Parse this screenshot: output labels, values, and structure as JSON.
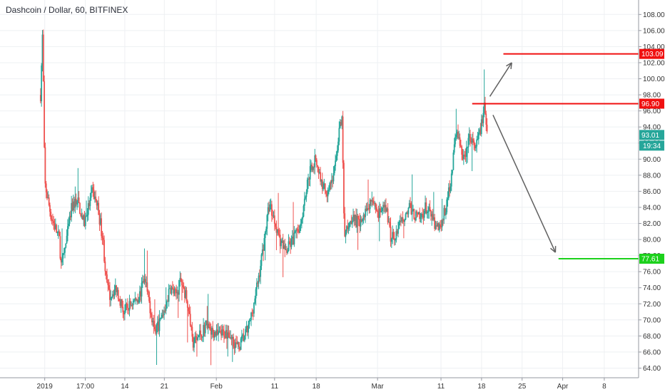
{
  "chart_data": {
    "type": "candlestick",
    "title": "Dashcoin / Dollar, 60, BITFINEX",
    "colors": {
      "up": "#26a69a",
      "down": "#ef5350",
      "resistance": "#f01010",
      "target_up": "#f01010",
      "target_down": "#1cd11c",
      "arrow": "#606060",
      "last_price": "#26a69a",
      "grid": "#eef0f3",
      "axis_text": "#333333"
    },
    "ylim": [
      62.8,
      109.8
    ],
    "y_ticks": [
      "64.00",
      "66.00",
      "68.00",
      "70.00",
      "72.00",
      "74.00",
      "76.00",
      "78.00",
      "80.00",
      "82.00",
      "84.00",
      "86.00",
      "88.00",
      "90.00",
      "92.00",
      "94.00",
      "96.00",
      "98.00",
      "100.00",
      "102.00",
      "104.00",
      "106.00",
      "108.00"
    ],
    "x_ticks": [
      "2019",
      "17:00",
      "14",
      "21",
      "Feb",
      "11",
      "18",
      "Mar",
      "11",
      "18",
      "25",
      "Apr",
      "8"
    ],
    "x_tick_positions": [
      0.4,
      4.3,
      8.1,
      11.9,
      16.9,
      22.5,
      26.5,
      32.4,
      38.5,
      42.4,
      46.3,
      50.2,
      54.2
    ],
    "x_range": [
      -3.9,
      57.5
    ],
    "price_path": [
      [
        0,
        98
      ],
      [
        0.2,
        106
      ],
      [
        0.4,
        87
      ],
      [
        1,
        83
      ],
      [
        1.8,
        80
      ],
      [
        2,
        76.5
      ],
      [
        2.5,
        80
      ],
      [
        3,
        84
      ],
      [
        3.5,
        85
      ],
      [
        4.2,
        82
      ],
      [
        5,
        86
      ],
      [
        5.5,
        84
      ],
      [
        6,
        80
      ],
      [
        6.3,
        75
      ],
      [
        6.6,
        73
      ],
      [
        7.3,
        74
      ],
      [
        8,
        71
      ],
      [
        8.7,
        72
      ],
      [
        9.5,
        73
      ],
      [
        10,
        75
      ],
      [
        11,
        68.5
      ],
      [
        11.6,
        70
      ],
      [
        12.5,
        74
      ],
      [
        13,
        73
      ],
      [
        13.5,
        75
      ],
      [
        14.2,
        72
      ],
      [
        14.6,
        67
      ],
      [
        15.2,
        68
      ],
      [
        16,
        69.5
      ],
      [
        17,
        68
      ],
      [
        18,
        68.5
      ],
      [
        19,
        66.5
      ],
      [
        20,
        69
      ],
      [
        20.5,
        72
      ],
      [
        21,
        75.5
      ],
      [
        21.5,
        80
      ],
      [
        22,
        84.5
      ],
      [
        22.6,
        82
      ],
      [
        23,
        80
      ],
      [
        23.6,
        78.5
      ],
      [
        24.3,
        80
      ],
      [
        25,
        82
      ],
      [
        25.5,
        86
      ],
      [
        26,
        89
      ],
      [
        26.5,
        90
      ],
      [
        27,
        87
      ],
      [
        27.5,
        86
      ],
      [
        28.2,
        88
      ],
      [
        28.7,
        93.5
      ],
      [
        29,
        94.8
      ],
      [
        29.2,
        80
      ],
      [
        29.5,
        81.5
      ],
      [
        30,
        83
      ],
      [
        30.5,
        82
      ],
      [
        31,
        82.5
      ],
      [
        31.5,
        84.5
      ],
      [
        32,
        85
      ],
      [
        32.5,
        83
      ],
      [
        33.2,
        84
      ],
      [
        33.7,
        80
      ],
      [
        34.3,
        81
      ],
      [
        35,
        83
      ],
      [
        35.5,
        84
      ],
      [
        36,
        83
      ],
      [
        36.5,
        82.5
      ],
      [
        37,
        84
      ],
      [
        37.5,
        83
      ],
      [
        38,
        81.5
      ],
      [
        38.5,
        82
      ],
      [
        39,
        84
      ],
      [
        39.5,
        88
      ],
      [
        40,
        94
      ],
      [
        40.4,
        91
      ],
      [
        40.8,
        90
      ],
      [
        41.3,
        93
      ],
      [
        41.8,
        91
      ],
      [
        42.4,
        94.5
      ],
      [
        42.7,
        96.5
      ],
      [
        43,
        93
      ]
    ],
    "last_price": "93.01",
    "countdown": "19:34",
    "levels": [
      {
        "label": "103.09",
        "value": 103.09,
        "x_start": 44.5,
        "role": "target_up"
      },
      {
        "label": "96.90",
        "value": 96.9,
        "x_start": 41.5,
        "role": "resistance"
      },
      {
        "label": "77.61",
        "value": 77.61,
        "x_start": 49.8,
        "role": "target_down"
      }
    ],
    "arrows": [
      {
        "from": [
          43.2,
          97.8
        ],
        "to": [
          45.3,
          102.0
        ]
      },
      {
        "from": [
          43.5,
          95.5
        ],
        "to": [
          49.5,
          78.4
        ]
      }
    ]
  }
}
